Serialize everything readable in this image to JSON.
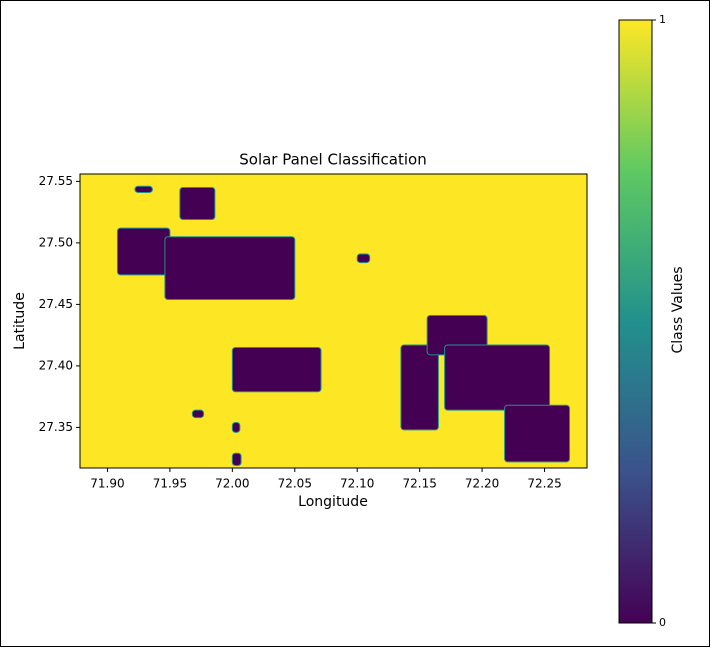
{
  "chart_data": {
    "type": "image",
    "title": "Solar Panel Classification",
    "xlabel": "Longitude",
    "ylabel": "Latitude",
    "xlim": [
      71.878,
      72.284
    ],
    "ylim": [
      27.317,
      27.556
    ],
    "xticks": [
      {
        "value": 71.9,
        "label": "71.90"
      },
      {
        "value": 71.95,
        "label": "71.95"
      },
      {
        "value": 72.0,
        "label": "72.00"
      },
      {
        "value": 72.05,
        "label": "72.05"
      },
      {
        "value": 72.1,
        "label": "72.10"
      },
      {
        "value": 72.15,
        "label": "72.15"
      },
      {
        "value": 72.2,
        "label": "72.20"
      },
      {
        "value": 72.25,
        "label": "72.25"
      }
    ],
    "yticks": [
      {
        "value": 27.35,
        "label": "27.35"
      },
      {
        "value": 27.4,
        "label": "27.40"
      },
      {
        "value": 27.45,
        "label": "27.45"
      },
      {
        "value": 27.5,
        "label": "27.50"
      },
      {
        "value": 27.55,
        "label": "27.55"
      }
    ],
    "colormap": [
      "#440154",
      "#3b528b",
      "#21918c",
      "#5ec962",
      "#fde725"
    ],
    "clim": [
      0,
      1
    ],
    "cticks": [
      0,
      1
    ],
    "clabel": "Class Values",
    "background": 1,
    "patches": [
      {
        "value": 0,
        "lon": [
          71.908,
          71.95
        ],
        "lat": [
          27.474,
          27.512
        ]
      },
      {
        "value": 0,
        "lon": [
          71.946,
          72.05
        ],
        "lat": [
          27.454,
          27.505
        ]
      },
      {
        "value": 0,
        "lon": [
          71.958,
          71.986
        ],
        "lat": [
          27.519,
          27.545
        ]
      },
      {
        "value": 0,
        "lon": [
          71.922,
          71.936
        ],
        "lat": [
          27.541,
          27.546
        ]
      },
      {
        "value": 0,
        "lon": [
          72.0,
          72.071
        ],
        "lat": [
          27.379,
          27.415
        ]
      },
      {
        "value": 0,
        "lon": [
          72.1,
          72.11
        ],
        "lat": [
          27.484,
          27.491
        ]
      },
      {
        "value": 0,
        "lon": [
          72.135,
          72.165
        ],
        "lat": [
          27.348,
          27.417
        ]
      },
      {
        "value": 0,
        "lon": [
          72.156,
          72.204
        ],
        "lat": [
          27.409,
          27.441
        ]
      },
      {
        "value": 0,
        "lon": [
          72.17,
          72.254
        ],
        "lat": [
          27.364,
          27.417
        ]
      },
      {
        "value": 0,
        "lon": [
          72.218,
          72.27
        ],
        "lat": [
          27.322,
          27.368
        ]
      },
      {
        "value": 0,
        "lon": [
          71.968,
          71.977
        ],
        "lat": [
          27.358,
          27.364
        ]
      },
      {
        "value": 0,
        "lon": [
          72.0,
          72.007
        ],
        "lat": [
          27.319,
          27.329
        ]
      },
      {
        "value": 0,
        "lon": [
          72.0,
          72.006
        ],
        "lat": [
          27.346,
          27.354
        ]
      }
    ]
  }
}
